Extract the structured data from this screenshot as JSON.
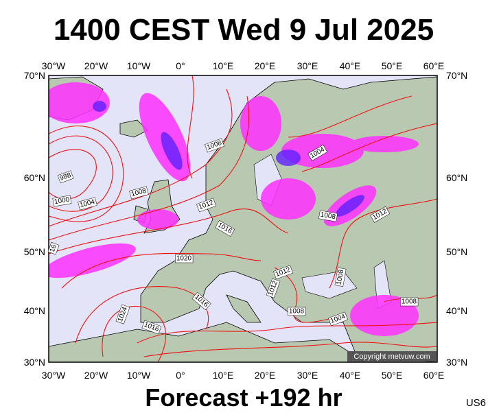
{
  "title": "1400 CEST Wed 9 Jul 2025",
  "map": {
    "lon_labels": [
      "30°W",
      "20°W",
      "10°W",
      "0°",
      "10°E",
      "20°E",
      "30°E",
      "40°E",
      "50°E",
      "60°E"
    ],
    "lat_labels": [
      "70°N",
      "60°N",
      "50°N",
      "40°N",
      "30°N"
    ],
    "isobar_labels": [
      "988",
      "1000",
      "1004",
      "1008",
      "1008",
      "1012",
      "1016",
      "1020",
      "1024",
      "1016",
      "1016",
      "16",
      "1012",
      "1012",
      "1008",
      "1008",
      "1004",
      "1008",
      "1012",
      "1004",
      "1008"
    ]
  },
  "copyright": "Copyright metvuw.com",
  "footer": {
    "forecast": "Forecast +192 hr",
    "code": "US6"
  }
}
